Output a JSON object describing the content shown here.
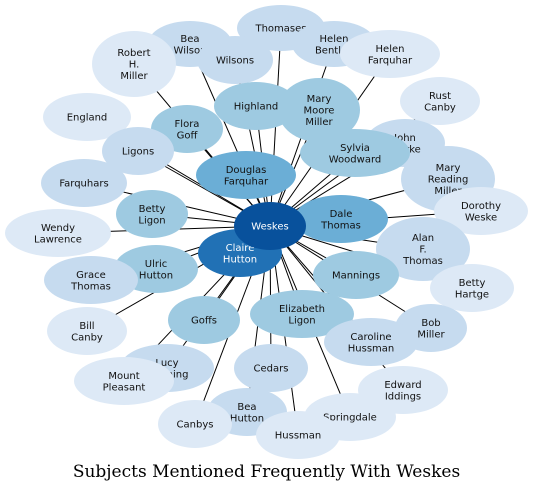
{
  "caption": "Subjects Mentioned Frequently With Weskes",
  "center": "Weskes",
  "palette": {
    "lightest": "#dde9f6",
    "light": "#c6dbef",
    "mid": "#9ecae1",
    "strong": "#6baed6",
    "deep": "#2171b5",
    "darkest": "#08519c"
  },
  "nodes": [
    {
      "id": "thomases",
      "label": "Thomases",
      "tone": "light"
    },
    {
      "id": "bea-wilson",
      "label": "Bea\nWilson",
      "tone": "light"
    },
    {
      "id": "helen-bentley",
      "label": "Helen\nBentley",
      "tone": "light"
    },
    {
      "id": "robert-h-miller",
      "label": "Robert\nH.\nMiller",
      "tone": "lightest"
    },
    {
      "id": "wilsons",
      "label": "Wilsons",
      "tone": "light"
    },
    {
      "id": "helen-farquhar",
      "label": "Helen\nFarquhar",
      "tone": "lightest"
    },
    {
      "id": "england",
      "label": "England",
      "tone": "lightest"
    },
    {
      "id": "rust-canby",
      "label": "Rust\nCanby",
      "tone": "lightest"
    },
    {
      "id": "highland",
      "label": "Highland",
      "tone": "mid"
    },
    {
      "id": "mary-moore-miller",
      "label": "Mary\nMoore\nMiller",
      "tone": "mid"
    },
    {
      "id": "flora-goff",
      "label": "Flora\nGoff",
      "tone": "mid"
    },
    {
      "id": "john-clarke",
      "label": "John\nClarke",
      "tone": "light"
    },
    {
      "id": "ligons",
      "label": "Ligons",
      "tone": "light"
    },
    {
      "id": "sylvia-woodward",
      "label": "Sylvia\nWoodward",
      "tone": "mid"
    },
    {
      "id": "douglas-farquhar",
      "label": "Douglas\nFarquhar",
      "tone": "strong"
    },
    {
      "id": "farquhars",
      "label": "Farquhars",
      "tone": "light"
    },
    {
      "id": "mary-reading-miller",
      "label": "Mary\nReading\nMiller",
      "tone": "light"
    },
    {
      "id": "dorothy-weske",
      "label": "Dorothy\nWeske",
      "tone": "lightest"
    },
    {
      "id": "betty-ligon",
      "label": "Betty\nLigon",
      "tone": "mid"
    },
    {
      "id": "dale-thomas",
      "label": "Dale\nThomas",
      "tone": "strong"
    },
    {
      "id": "wendy-lawrence",
      "label": "Wendy\nLawrence",
      "tone": "lightest"
    },
    {
      "id": "alan-f-thomas",
      "label": "Alan\nF.\nThomas",
      "tone": "light"
    },
    {
      "id": "claire-hutton",
      "label": "Claire\nHutton",
      "tone": "deep"
    },
    {
      "id": "ulric-hutton",
      "label": "Ulric\nHutton",
      "tone": "mid"
    },
    {
      "id": "grace-thomas",
      "label": "Grace\nThomas",
      "tone": "light"
    },
    {
      "id": "mannings",
      "label": "Mannings",
      "tone": "mid"
    },
    {
      "id": "betty-hartge",
      "label": "Betty\nHartge",
      "tone": "lightest"
    },
    {
      "id": "bill-canby",
      "label": "Bill\nCanby",
      "tone": "lightest"
    },
    {
      "id": "goffs",
      "label": "Goffs",
      "tone": "mid"
    },
    {
      "id": "elizabeth-ligon",
      "label": "Elizabeth\nLigon",
      "tone": "mid"
    },
    {
      "id": "bob-miller",
      "label": "Bob\nMiller",
      "tone": "light"
    },
    {
      "id": "caroline-hussman",
      "label": "Caroline\nHussman",
      "tone": "light"
    },
    {
      "id": "lucy-manning",
      "label": "Lucy\nManning",
      "tone": "light"
    },
    {
      "id": "mount-pleasant",
      "label": "Mount\nPleasant",
      "tone": "lightest"
    },
    {
      "id": "cedars",
      "label": "Cedars",
      "tone": "light"
    },
    {
      "id": "edward-iddings",
      "label": "Edward\nIddings",
      "tone": "lightest"
    },
    {
      "id": "bea-hutton",
      "label": "Bea\nHutton",
      "tone": "light"
    },
    {
      "id": "springdale",
      "label": "Springdale",
      "tone": "lightest"
    },
    {
      "id": "canbys",
      "label": "Canbys",
      "tone": "lightest"
    },
    {
      "id": "hussman",
      "label": "Hussman",
      "tone": "lightest"
    }
  ]
}
